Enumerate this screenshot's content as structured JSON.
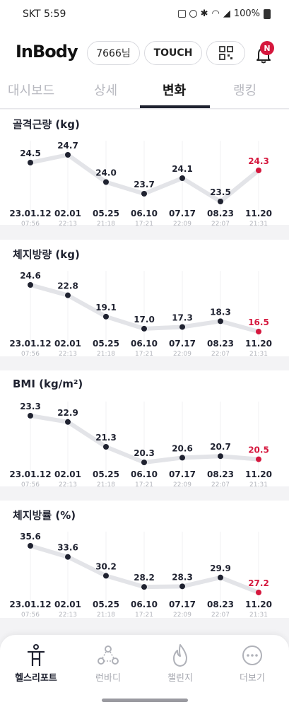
{
  "status_bar": {
    "carrier": "SKT",
    "time": "5:59",
    "battery": "100%"
  },
  "header": {
    "logo": "InBody",
    "member": "7666님",
    "touch": "TOUCH",
    "notification_badge": "N"
  },
  "tabs": [
    {
      "label": "대시보드",
      "active": false
    },
    {
      "label": "상세",
      "active": false
    },
    {
      "label": "변화",
      "active": true
    },
    {
      "label": "랭킹",
      "active": false
    }
  ],
  "colors": {
    "accent": "#d5173d",
    "text": "#1f2230",
    "line": "#e3e4e8",
    "dot": "#1f2230"
  },
  "chart_data": [
    {
      "type": "line",
      "title": "골격근량 (kg)",
      "x": [
        "23.01.12",
        "02.01",
        "05.25",
        "06.10",
        "07.17",
        "08.23",
        "11.20"
      ],
      "times": [
        "07:56",
        "22:13",
        "21:18",
        "17:21",
        "22:09",
        "22:07",
        "21:31"
      ],
      "series": [
        {
          "values": [
            24.5,
            24.7,
            24.0,
            23.7,
            24.1,
            23.5,
            24.3
          ]
        }
      ],
      "labels": [
        "24.5",
        "24.7",
        "24.0",
        "23.7",
        "24.1",
        "23.5",
        "24.3"
      ]
    },
    {
      "type": "line",
      "title": "체지방량 (kg)",
      "x": [
        "23.01.12",
        "02.01",
        "05.25",
        "06.10",
        "07.17",
        "08.23",
        "11.20"
      ],
      "times": [
        "07:56",
        "22:13",
        "21:18",
        "17:21",
        "22:09",
        "22:07",
        "21:31"
      ],
      "series": [
        {
          "values": [
            24.6,
            22.8,
            19.1,
            17.0,
            17.3,
            18.3,
            16.5
          ]
        }
      ],
      "labels": [
        "24.6",
        "22.8",
        "19.1",
        "17.0",
        "17.3",
        "18.3",
        "16.5"
      ]
    },
    {
      "type": "line",
      "title": "BMI (kg/m²)",
      "x": [
        "23.01.12",
        "02.01",
        "05.25",
        "06.10",
        "07.17",
        "08.23",
        "11.20"
      ],
      "times": [
        "07:56",
        "22:13",
        "21:18",
        "17:21",
        "22:09",
        "22:07",
        "21:31"
      ],
      "series": [
        {
          "values": [
            23.3,
            22.9,
            21.3,
            20.3,
            20.6,
            20.7,
            20.5
          ]
        }
      ],
      "labels": [
        "23.3",
        "22.9",
        "21.3",
        "20.3",
        "20.6",
        "20.7",
        "20.5"
      ]
    },
    {
      "type": "line",
      "title": "체지방률 (%)",
      "x": [
        "23.01.12",
        "02.01",
        "05.25",
        "06.10",
        "07.17",
        "08.23",
        "11.20"
      ],
      "times": [
        "07:56",
        "22:13",
        "21:18",
        "17:21",
        "22:09",
        "22:07",
        "21:31"
      ],
      "series": [
        {
          "values": [
            35.6,
            33.6,
            30.2,
            28.2,
            28.3,
            29.9,
            27.2
          ]
        }
      ],
      "labels": [
        "35.6",
        "33.6",
        "30.2",
        "28.2",
        "28.3",
        "29.9",
        "27.2"
      ]
    }
  ],
  "bottom_nav": [
    {
      "label": "헬스리포트",
      "icon": "health-report-icon",
      "active": true
    },
    {
      "label": "런바디",
      "icon": "runbody-icon",
      "active": false
    },
    {
      "label": "챌린지",
      "icon": "challenge-flame-icon",
      "active": false
    },
    {
      "label": "더보기",
      "icon": "more-dots-icon",
      "active": false
    }
  ]
}
